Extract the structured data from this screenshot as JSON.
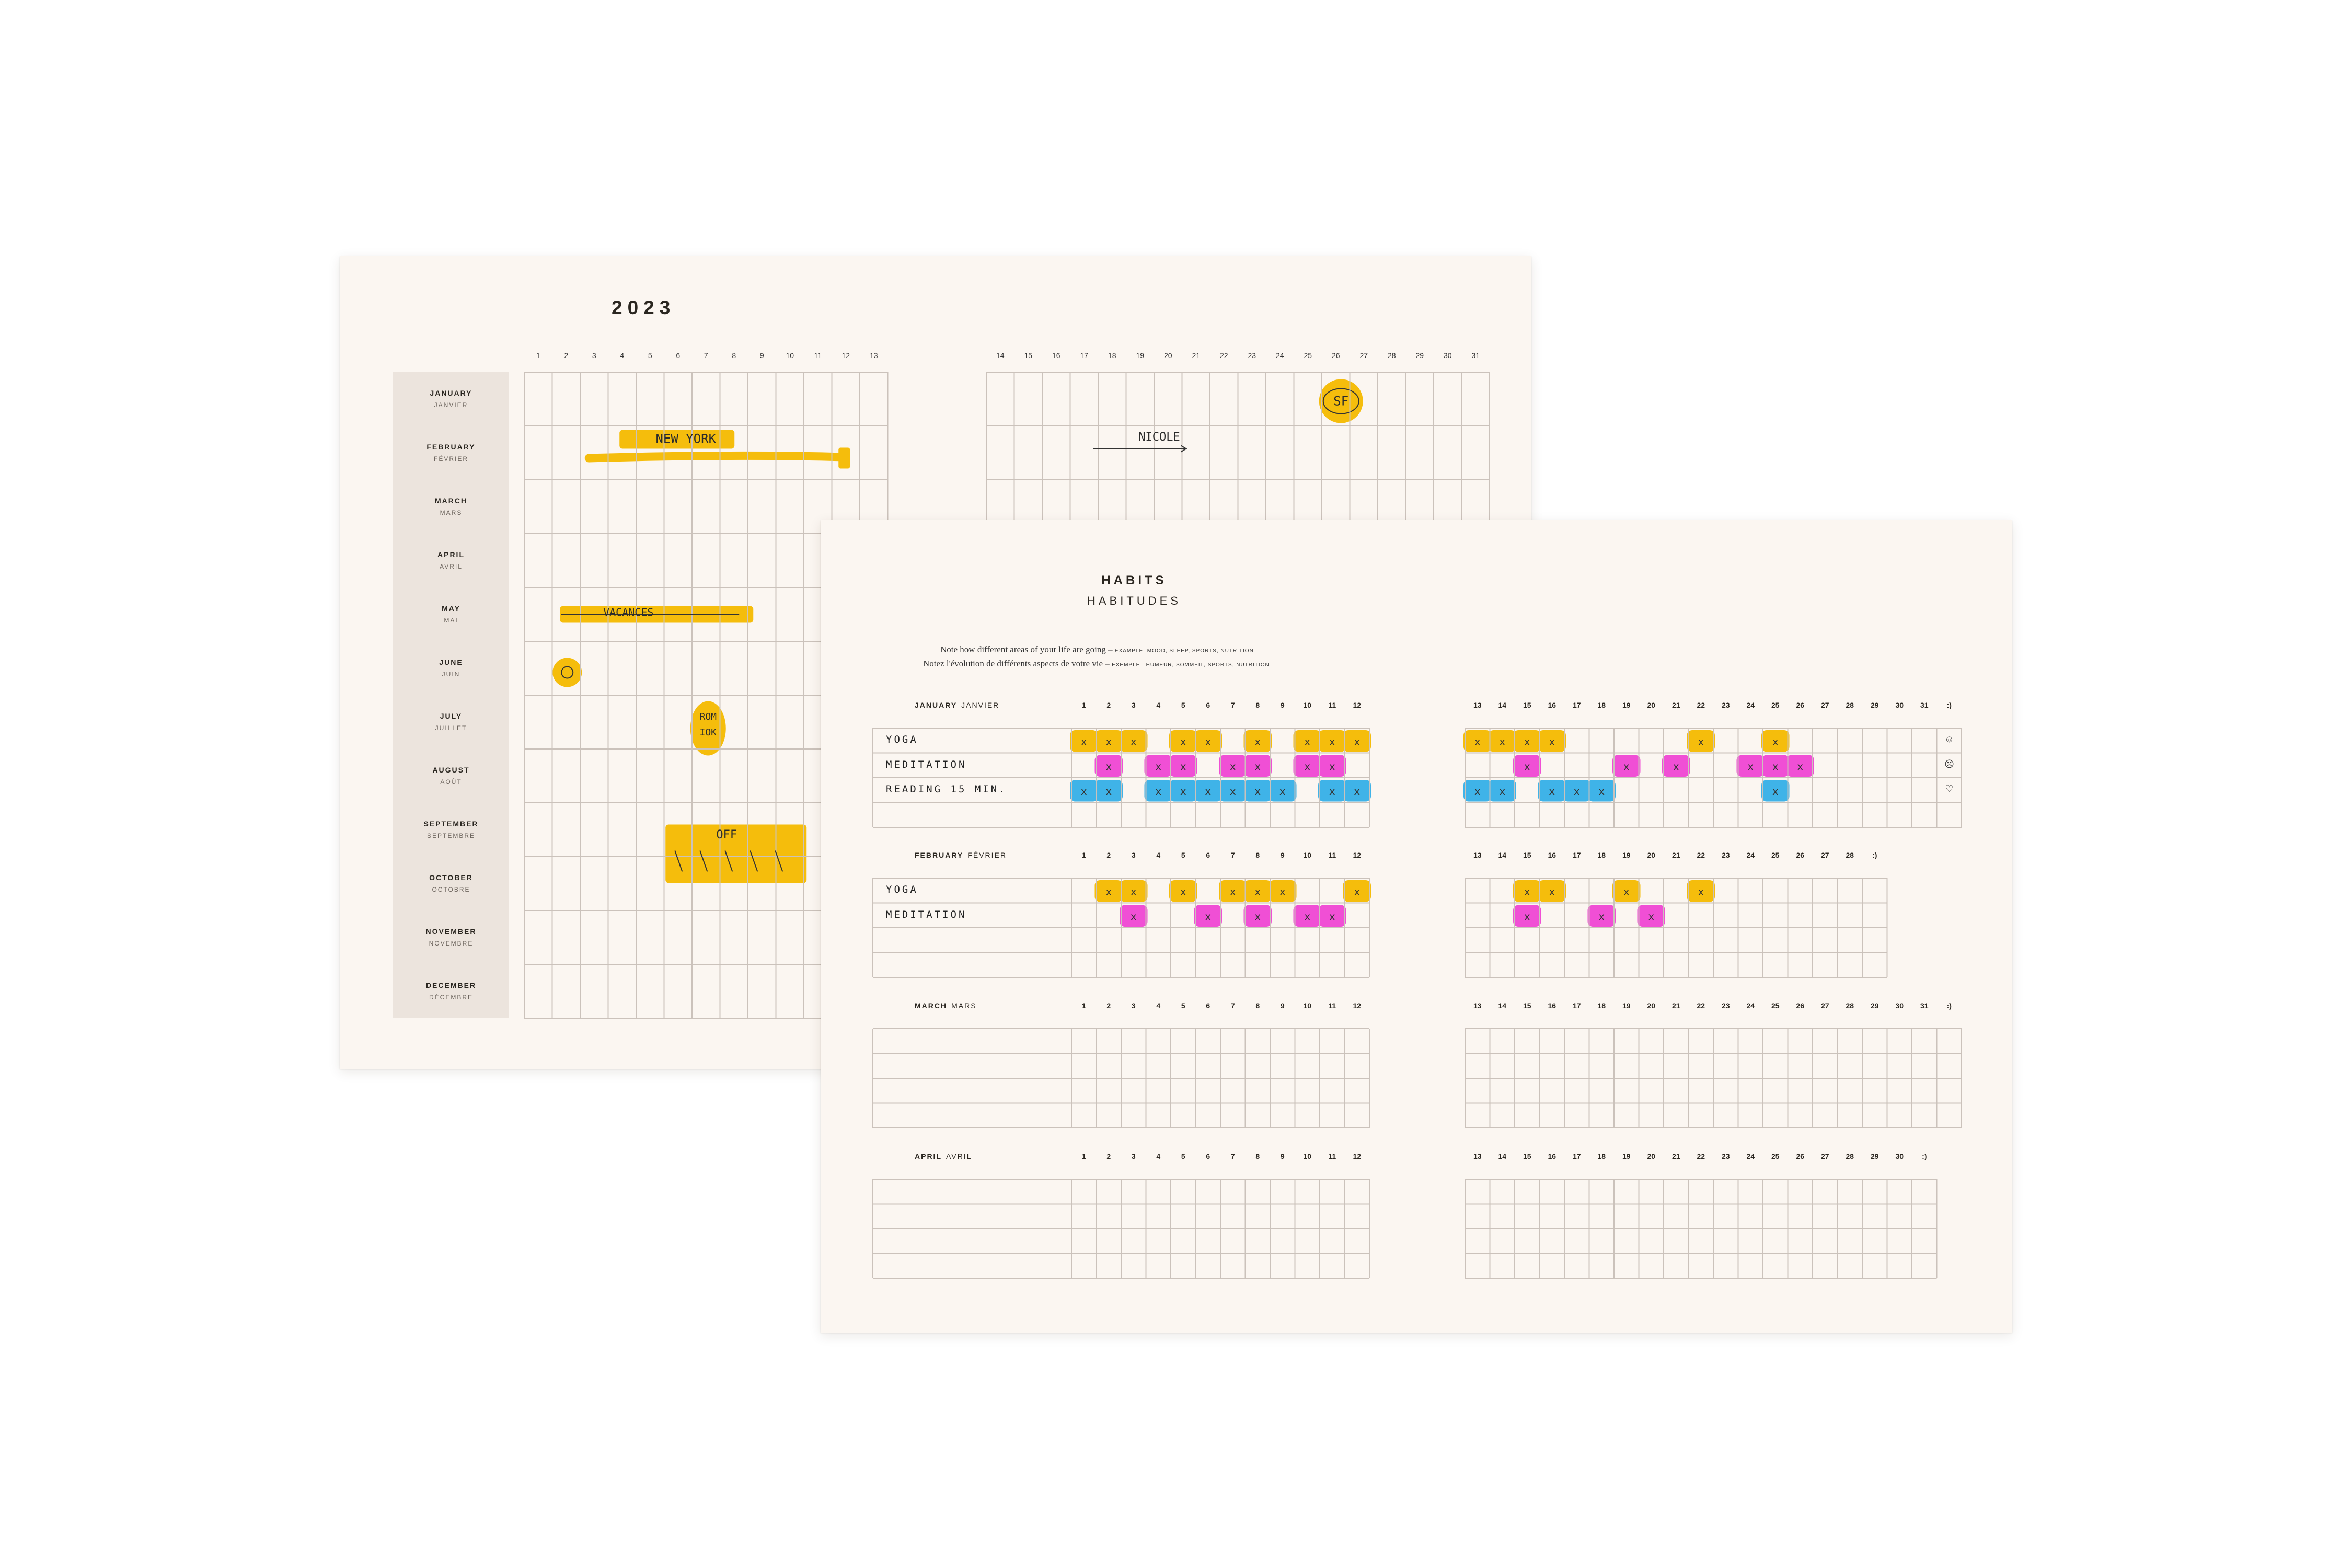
{
  "year_planner": {
    "year": "2023",
    "days_left": [
      "1",
      "2",
      "3",
      "4",
      "5",
      "6",
      "7",
      "8",
      "9",
      "10",
      "11",
      "12",
      "13"
    ],
    "days_right": [
      "14",
      "15",
      "16",
      "17",
      "18",
      "19",
      "20",
      "21",
      "22",
      "23",
      "24",
      "25",
      "26",
      "27",
      "28",
      "29",
      "30",
      "31"
    ],
    "months": [
      {
        "en": "JANUARY",
        "fr": "JANVIER"
      },
      {
        "en": "FEBRUARY",
        "fr": "FÉVRIER"
      },
      {
        "en": "MARCH",
        "fr": "MARS"
      },
      {
        "en": "APRIL",
        "fr": "AVRIL"
      },
      {
        "en": "MAY",
        "fr": "MAI"
      },
      {
        "en": "JUNE",
        "fr": "JUIN"
      },
      {
        "en": "JULY",
        "fr": "JUILLET"
      },
      {
        "en": "AUGUST",
        "fr": "AOÛT"
      },
      {
        "en": "SEPTEMBER",
        "fr": "SEPTEMBRE"
      },
      {
        "en": "OCTOBER",
        "fr": "OCTOBRE"
      },
      {
        "en": "NOVEMBER",
        "fr": "NOVEMBRE"
      },
      {
        "en": "DECEMBER",
        "fr": "DÉCEMBRE"
      }
    ],
    "annotations": {
      "new_york": "NEW YORK",
      "nicole": "NICOLE",
      "sf": "SF",
      "vacances": "VACANCES",
      "rom": "ROM",
      "iok": "IOK",
      "off": "OFF"
    }
  },
  "habits": {
    "title": "HABITS",
    "subtitle": "HABITUDES",
    "note_en": "Note how different areas of your life are going –",
    "note_en_example": "EXAMPLE: MOOD, SLEEP, SPORTS, NUTRITION",
    "note_fr": "Notez l'évolution de différents aspects de votre vie –",
    "note_fr_example": "EXEMPLE : HUMEUR, SOMMEIL, SPORTS, NUTRITION",
    "smiley": ":)",
    "moods": [
      "☺",
      "☹",
      "♡"
    ],
    "mark": "x",
    "months": [
      {
        "en": "JANUARY",
        "fr": "JANVIER",
        "days_left": [
          "1",
          "2",
          "3",
          "4",
          "5",
          "6",
          "7",
          "8",
          "9",
          "10",
          "11",
          "12"
        ],
        "days_right": [
          "13",
          "14",
          "15",
          "16",
          "17",
          "18",
          "19",
          "20",
          "21",
          "22",
          "23",
          "24",
          "25",
          "26",
          "27",
          "28",
          "29",
          "30",
          "31"
        ],
        "habits": [
          "YOGA",
          "MEDITATION",
          "READING 15 MIN.",
          ""
        ]
      },
      {
        "en": "FEBRUARY",
        "fr": "FÉVRIER",
        "days_left": [
          "1",
          "2",
          "3",
          "4",
          "5",
          "6",
          "7",
          "8",
          "9",
          "10",
          "11",
          "12"
        ],
        "days_right": [
          "13",
          "14",
          "15",
          "16",
          "17",
          "18",
          "19",
          "20",
          "21",
          "22",
          "23",
          "24",
          "25",
          "26",
          "27",
          "28"
        ],
        "habits": [
          "YOGA",
          "MEDITATION",
          "",
          ""
        ]
      },
      {
        "en": "MARCH",
        "fr": "MARS",
        "days_left": [
          "1",
          "2",
          "3",
          "4",
          "5",
          "6",
          "7",
          "8",
          "9",
          "10",
          "11",
          "12"
        ],
        "days_right": [
          "13",
          "14",
          "15",
          "16",
          "17",
          "18",
          "19",
          "20",
          "21",
          "22",
          "23",
          "24",
          "25",
          "26",
          "27",
          "28",
          "29",
          "30",
          "31"
        ],
        "habits": [
          "",
          "",
          "",
          ""
        ]
      },
      {
        "en": "APRIL",
        "fr": "AVRIL",
        "days_left": [
          "1",
          "2",
          "3",
          "4",
          "5",
          "6",
          "7",
          "8",
          "9",
          "10",
          "11",
          "12"
        ],
        "days_right": [
          "13",
          "14",
          "15",
          "16",
          "17",
          "18",
          "19",
          "20",
          "21",
          "22",
          "23",
          "24",
          "25",
          "26",
          "27",
          "28",
          "29",
          "30"
        ],
        "habits": [
          "",
          "",
          "",
          ""
        ]
      }
    ]
  },
  "colors": {
    "paper": "#fbf6f1",
    "month_column": "#ece4dd",
    "grid_line": "#cbc2bb",
    "yellow": "#f5bd0c",
    "pink": "#f04fd5",
    "blue": "#3fb3e8"
  }
}
